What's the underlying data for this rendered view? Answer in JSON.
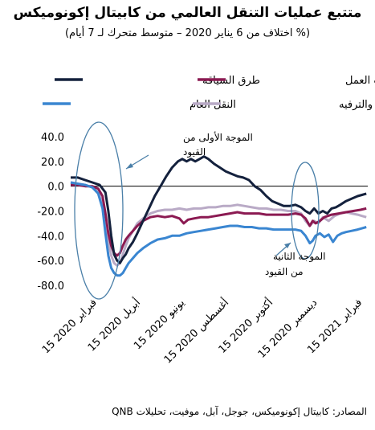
{
  "title": "متتبع عمليات التنقل العالمي من كابيتال إكونوميكس",
  "subtitle": "(% اختلاف من 6 يناير 2020 – متوسط متحرك لـ 7 أيام)",
  "source": "المصادر: كابيتال إكونوميكس، جوجل، آبل، موفيت، تحليلات QNB",
  "annotations": {
    "wave1_line1": "الموجة الأولى من",
    "wave1_line2": "القيود",
    "wave2_line1": "الموجة الثانية",
    "wave2_line2": "من القيود"
  },
  "colors": {
    "road": "#14213d",
    "work": "#8b1a52",
    "retail": "#b9aac6",
    "transit": "#3a86d1",
    "ellipse": "#4a7fa8"
  },
  "chart_data": {
    "type": "line",
    "ylim": [
      -80,
      40
    ],
    "yticks": [
      "40.0",
      "20.0",
      "0.0",
      "-20.0",
      "-40.0",
      "-60.0",
      "-80.0"
    ],
    "xticks": [
      "15 فبراير 2020",
      "15 أبريل 2020",
      "15 يونيو 2020",
      "15 أغسطس 2020",
      "15 أكتوبر 2020",
      "15 ديسمبر 2020",
      "15 فبراير 2021"
    ],
    "x_days": [
      0,
      60,
      121,
      182,
      243,
      304,
      366
    ],
    "legend": [
      "طرق السياقة",
      "زيارات مقرات العمل",
      "التجزئة والترفيه",
      "النقل العام"
    ],
    "series": [
      {
        "name": "طرق السياقة",
        "color_key": "road",
        "points": [
          [
            -30,
            7
          ],
          [
            -20,
            7
          ],
          [
            -10,
            5
          ],
          [
            0,
            3
          ],
          [
            10,
            1
          ],
          [
            18,
            -5
          ],
          [
            22,
            -20
          ],
          [
            26,
            -40
          ],
          [
            30,
            -55
          ],
          [
            34,
            -60
          ],
          [
            38,
            -62
          ],
          [
            42,
            -58
          ],
          [
            46,
            -55
          ],
          [
            50,
            -50
          ],
          [
            56,
            -45
          ],
          [
            62,
            -38
          ],
          [
            70,
            -28
          ],
          [
            78,
            -18
          ],
          [
            86,
            -8
          ],
          [
            94,
            0
          ],
          [
            102,
            8
          ],
          [
            110,
            15
          ],
          [
            118,
            20
          ],
          [
            124,
            22
          ],
          [
            130,
            20
          ],
          [
            136,
            22
          ],
          [
            142,
            20
          ],
          [
            148,
            22
          ],
          [
            154,
            24
          ],
          [
            160,
            22
          ],
          [
            168,
            18
          ],
          [
            176,
            15
          ],
          [
            184,
            12
          ],
          [
            192,
            10
          ],
          [
            200,
            8
          ],
          [
            208,
            7
          ],
          [
            216,
            5
          ],
          [
            224,
            0
          ],
          [
            232,
            -3
          ],
          [
            240,
            -8
          ],
          [
            248,
            -12
          ],
          [
            256,
            -14
          ],
          [
            264,
            -16
          ],
          [
            272,
            -16
          ],
          [
            280,
            -15
          ],
          [
            288,
            -17
          ],
          [
            294,
            -20
          ],
          [
            300,
            -22
          ],
          [
            306,
            -18
          ],
          [
            312,
            -22
          ],
          [
            318,
            -20
          ],
          [
            324,
            -22
          ],
          [
            330,
            -18
          ],
          [
            336,
            -17
          ],
          [
            342,
            -15
          ],
          [
            350,
            -12
          ],
          [
            358,
            -10
          ],
          [
            366,
            -8
          ],
          [
            372,
            -7
          ],
          [
            378,
            -6
          ]
        ]
      },
      {
        "name": "زيارات مقرات العمل",
        "color_key": "work",
        "points": [
          [
            -30,
            1
          ],
          [
            -20,
            1
          ],
          [
            -10,
            0
          ],
          [
            0,
            0
          ],
          [
            8,
            -2
          ],
          [
            14,
            -8
          ],
          [
            18,
            -22
          ],
          [
            22,
            -38
          ],
          [
            26,
            -48
          ],
          [
            30,
            -54
          ],
          [
            34,
            -56
          ],
          [
            38,
            -54
          ],
          [
            42,
            -48
          ],
          [
            46,
            -43
          ],
          [
            50,
            -40
          ],
          [
            56,
            -36
          ],
          [
            62,
            -32
          ],
          [
            70,
            -28
          ],
          [
            80,
            -25
          ],
          [
            90,
            -24
          ],
          [
            100,
            -25
          ],
          [
            110,
            -24
          ],
          [
            120,
            -26
          ],
          [
            126,
            -30
          ],
          [
            132,
            -27
          ],
          [
            140,
            -26
          ],
          [
            150,
            -25
          ],
          [
            160,
            -25
          ],
          [
            170,
            -24
          ],
          [
            180,
            -23
          ],
          [
            190,
            -22
          ],
          [
            200,
            -21
          ],
          [
            210,
            -22
          ],
          [
            220,
            -22
          ],
          [
            230,
            -22
          ],
          [
            240,
            -23
          ],
          [
            250,
            -23
          ],
          [
            260,
            -23
          ],
          [
            270,
            -23
          ],
          [
            280,
            -22
          ],
          [
            288,
            -23
          ],
          [
            294,
            -26
          ],
          [
            300,
            -32
          ],
          [
            304,
            -28
          ],
          [
            308,
            -30
          ],
          [
            314,
            -28
          ],
          [
            320,
            -25
          ],
          [
            330,
            -23
          ],
          [
            340,
            -22
          ],
          [
            350,
            -21
          ],
          [
            360,
            -20
          ],
          [
            370,
            -19
          ],
          [
            378,
            -18
          ]
        ]
      },
      {
        "name": "التجزئة والترفيه",
        "color_key": "retail",
        "points": [
          [
            -30,
            3
          ],
          [
            -20,
            2
          ],
          [
            -10,
            1
          ],
          [
            0,
            -1
          ],
          [
            8,
            -5
          ],
          [
            14,
            -14
          ],
          [
            18,
            -28
          ],
          [
            22,
            -44
          ],
          [
            26,
            -56
          ],
          [
            30,
            -62
          ],
          [
            34,
            -64
          ],
          [
            38,
            -62
          ],
          [
            42,
            -55
          ],
          [
            46,
            -48
          ],
          [
            50,
            -42
          ],
          [
            56,
            -36
          ],
          [
            62,
            -30
          ],
          [
            70,
            -26
          ],
          [
            80,
            -22
          ],
          [
            90,
            -20
          ],
          [
            100,
            -19
          ],
          [
            110,
            -19
          ],
          [
            120,
            -18
          ],
          [
            130,
            -19
          ],
          [
            140,
            -18
          ],
          [
            150,
            -18
          ],
          [
            160,
            -17
          ],
          [
            170,
            -17
          ],
          [
            180,
            -16
          ],
          [
            190,
            -16
          ],
          [
            200,
            -15
          ],
          [
            210,
            -16
          ],
          [
            220,
            -17
          ],
          [
            230,
            -18
          ],
          [
            240,
            -18
          ],
          [
            250,
            -19
          ],
          [
            260,
            -19
          ],
          [
            270,
            -20
          ],
          [
            280,
            -20
          ],
          [
            288,
            -22
          ],
          [
            294,
            -28
          ],
          [
            300,
            -32
          ],
          [
            306,
            -28
          ],
          [
            312,
            -30
          ],
          [
            318,
            -25
          ],
          [
            326,
            -28
          ],
          [
            334,
            -24
          ],
          [
            342,
            -22
          ],
          [
            350,
            -21
          ],
          [
            358,
            -22
          ],
          [
            366,
            -23
          ],
          [
            372,
            -24
          ],
          [
            378,
            -25
          ]
        ]
      },
      {
        "name": "النقل العام",
        "color_key": "transit",
        "points": [
          [
            -30,
            3
          ],
          [
            -20,
            2
          ],
          [
            -10,
            1
          ],
          [
            0,
            -1
          ],
          [
            8,
            -6
          ],
          [
            14,
            -18
          ],
          [
            18,
            -38
          ],
          [
            22,
            -56
          ],
          [
            26,
            -66
          ],
          [
            30,
            -70
          ],
          [
            34,
            -72
          ],
          [
            38,
            -72
          ],
          [
            42,
            -70
          ],
          [
            46,
            -66
          ],
          [
            50,
            -62
          ],
          [
            56,
            -58
          ],
          [
            62,
            -54
          ],
          [
            70,
            -50
          ],
          [
            80,
            -46
          ],
          [
            90,
            -43
          ],
          [
            100,
            -42
          ],
          [
            110,
            -40
          ],
          [
            120,
            -40
          ],
          [
            130,
            -38
          ],
          [
            140,
            -37
          ],
          [
            150,
            -36
          ],
          [
            160,
            -35
          ],
          [
            170,
            -34
          ],
          [
            180,
            -33
          ],
          [
            190,
            -32
          ],
          [
            200,
            -32
          ],
          [
            210,
            -33
          ],
          [
            220,
            -33
          ],
          [
            230,
            -34
          ],
          [
            240,
            -34
          ],
          [
            250,
            -35
          ],
          [
            260,
            -35
          ],
          [
            270,
            -35
          ],
          [
            280,
            -35
          ],
          [
            288,
            -36
          ],
          [
            294,
            -40
          ],
          [
            300,
            -46
          ],
          [
            304,
            -44
          ],
          [
            308,
            -40
          ],
          [
            314,
            -38
          ],
          [
            320,
            -41
          ],
          [
            326,
            -39
          ],
          [
            332,
            -45
          ],
          [
            338,
            -40
          ],
          [
            344,
            -38
          ],
          [
            350,
            -37
          ],
          [
            358,
            -36
          ],
          [
            366,
            -35
          ],
          [
            372,
            -34
          ],
          [
            378,
            -33
          ]
        ]
      }
    ]
  }
}
